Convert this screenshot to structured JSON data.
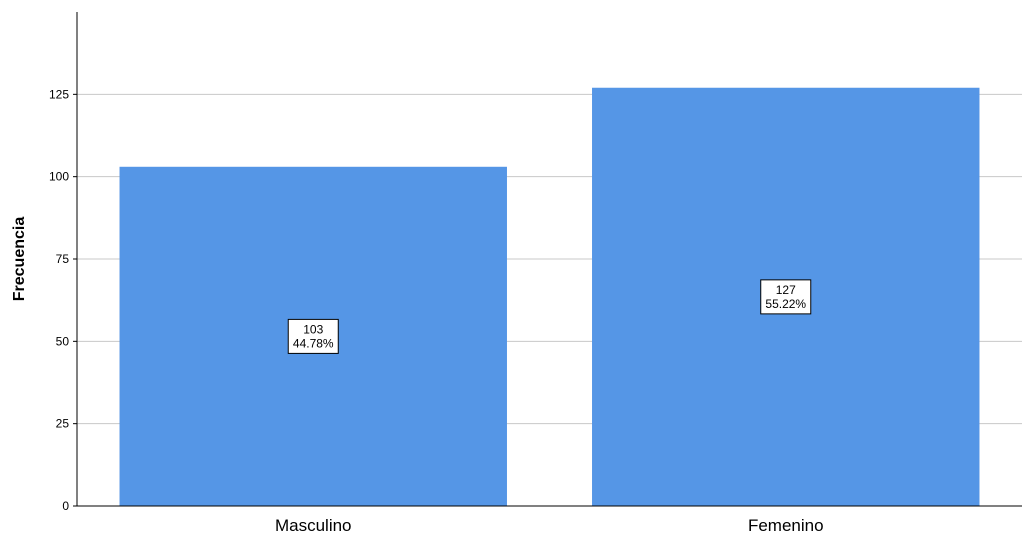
{
  "chart_data": {
    "type": "bar",
    "categories": [
      "Masculino",
      "Femenino"
    ],
    "values": [
      103,
      127
    ],
    "percent_labels": [
      "44.78%",
      "55.22%"
    ],
    "title": "",
    "xlabel": "",
    "ylabel": "Frecuencia",
    "ylim": [
      0,
      150
    ],
    "yticks": [
      0,
      25,
      50,
      75,
      100,
      125
    ],
    "grid": true,
    "legend": "none",
    "colors": {
      "bar": "#5596e6",
      "grid": "#c8c8c8",
      "axis": "#000000",
      "label_box_fill": "#ffffff",
      "label_box_stroke": "#000000"
    }
  }
}
